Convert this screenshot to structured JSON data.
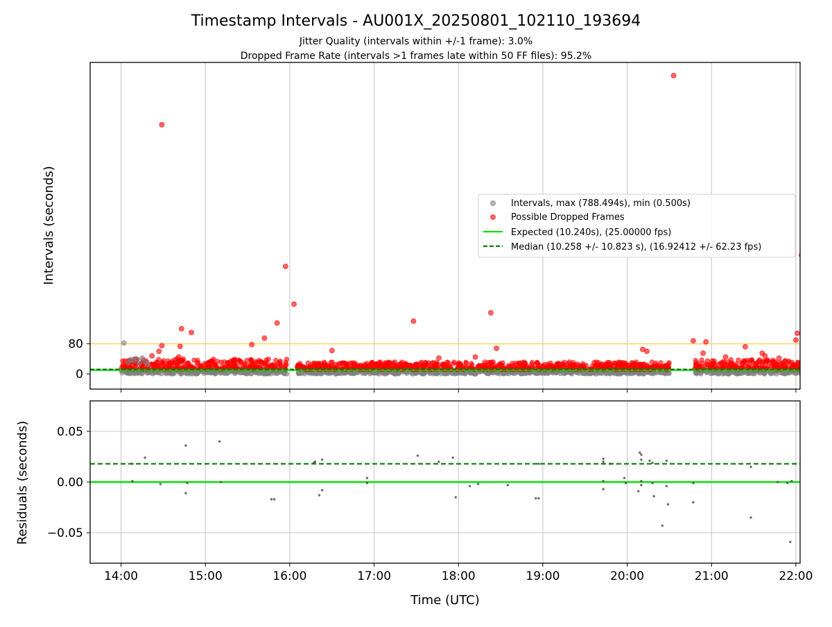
{
  "figure": {
    "title": "Timestamp Intervals - AU001X_20250801_102110_193694",
    "subtitle_line1": "Jitter Quality (intervals within +/-1 frame): 3.0%",
    "subtitle_line2": "Dropped Frame Rate (intervals >1 frames late within 50 FF files): 95.2%"
  },
  "colors": {
    "intervals": "#808080",
    "dropped": "#ff0000",
    "expected": "#00e000",
    "median": "#007f00",
    "threshold": "#ffd24d",
    "grid": "#c8c8c8",
    "residuals": "#505050"
  },
  "chart_data": [
    {
      "type": "scatter",
      "name": "intervals",
      "ylabel": "Intervals (seconds)",
      "xlim": [
        "13:38",
        "22:03"
      ],
      "ylim": [
        -40,
        825
      ],
      "yticks": [
        0,
        80
      ],
      "ytick_labels": [
        "0",
        "80"
      ],
      "grid": "x",
      "legend_position": "center-right",
      "threshold_line": 80,
      "legend": [
        {
          "label": "Intervals, max (788.494s), min (0.500s)",
          "kind": "gray-dot"
        },
        {
          "label": "Possible Dropped Frames",
          "kind": "red-dot"
        },
        {
          "label": "Expected (10.240s), (25.00000 fps)",
          "kind": "solid-line"
        },
        {
          "label": "Median (10.258 +/- 10.823 s), (16.92412 +/- 62.23 fps)",
          "kind": "dashed-line"
        }
      ],
      "expected": 10.24,
      "median": 10.258,
      "dense_segments": [
        {
          "start": "14:00",
          "end": "15:58",
          "gray_low": 0,
          "gray_high": 12,
          "red_low": 13,
          "red_high": 40
        },
        {
          "start": "16:05",
          "end": "20:30",
          "gray_low": 0,
          "gray_high": 10,
          "red_low": 12,
          "red_high": 32
        },
        {
          "start": "20:48",
          "end": "22:03",
          "gray_low": 0,
          "gray_high": 12,
          "red_low": 13,
          "red_high": 38
        }
      ],
      "gray_outliers": [
        {
          "x": "14:02",
          "y": 82
        },
        {
          "x": "14:05",
          "y": 30
        },
        {
          "x": "14:07",
          "y": 38
        },
        {
          "x": "14:09",
          "y": 35
        },
        {
          "x": "14:11",
          "y": 40
        },
        {
          "x": "14:13",
          "y": 28
        },
        {
          "x": "14:15",
          "y": 42
        },
        {
          "x": "14:17",
          "y": 33
        },
        {
          "x": "14:19",
          "y": 25
        }
      ],
      "red_outliers": [
        {
          "x": "14:29",
          "y": 660
        },
        {
          "x": "14:29",
          "y": 75
        },
        {
          "x": "14:27",
          "y": 60
        },
        {
          "x": "14:22",
          "y": 48
        },
        {
          "x": "14:42",
          "y": 73
        },
        {
          "x": "14:43",
          "y": 120
        },
        {
          "x": "14:50",
          "y": 110
        },
        {
          "x": "14:41",
          "y": 45
        },
        {
          "x": "15:33",
          "y": 78
        },
        {
          "x": "15:42",
          "y": 95
        },
        {
          "x": "15:51",
          "y": 135
        },
        {
          "x": "15:57",
          "y": 285
        },
        {
          "x": "16:03",
          "y": 185
        },
        {
          "x": "16:30",
          "y": 62
        },
        {
          "x": "17:28",
          "y": 140
        },
        {
          "x": "17:46",
          "y": 42
        },
        {
          "x": "18:23",
          "y": 162
        },
        {
          "x": "18:27",
          "y": 68
        },
        {
          "x": "18:12",
          "y": 45
        },
        {
          "x": "20:33",
          "y": 790
        },
        {
          "x": "20:11",
          "y": 65
        },
        {
          "x": "20:14",
          "y": 60
        },
        {
          "x": "20:47",
          "y": 88
        },
        {
          "x": "20:54",
          "y": 55
        },
        {
          "x": "20:56",
          "y": 85
        },
        {
          "x": "21:24",
          "y": 72
        },
        {
          "x": "21:36",
          "y": 55
        },
        {
          "x": "21:38",
          "y": 48
        },
        {
          "x": "22:01",
          "y": 108
        },
        {
          "x": "22:00",
          "y": 90
        },
        {
          "x": "22:04",
          "y": 315
        },
        {
          "x": "21:48",
          "y": 42
        },
        {
          "x": "21:10",
          "y": 45
        }
      ]
    },
    {
      "type": "scatter",
      "name": "residuals",
      "ylabel": "Residuals (seconds)",
      "xlabel": "Time (UTC)",
      "xlim": [
        "13:38",
        "22:03"
      ],
      "ylim": [
        -0.08,
        0.08
      ],
      "yticks": [
        0.05,
        0.0,
        -0.05
      ],
      "ytick_labels": [
        "0.05",
        "0.00",
        "−0.05"
      ],
      "xticks": [
        "14:00",
        "15:00",
        "16:00",
        "17:00",
        "18:00",
        "19:00",
        "20:00",
        "21:00",
        "22:00"
      ],
      "grid": "both",
      "expected": 0.0,
      "median": 0.018,
      "points": [
        {
          "x": "14:08",
          "y": 0.018
        },
        {
          "x": "14:08",
          "y": 0.001
        },
        {
          "x": "14:17",
          "y": 0.024
        },
        {
          "x": "14:28",
          "y": -0.002
        },
        {
          "x": "14:46",
          "y": 0.036
        },
        {
          "x": "14:46",
          "y": -0.011
        },
        {
          "x": "14:47",
          "y": -0.001
        },
        {
          "x": "15:10",
          "y": 0.04
        },
        {
          "x": "15:11",
          "y": 0.0
        },
        {
          "x": "15:47",
          "y": -0.017
        },
        {
          "x": "15:49",
          "y": -0.017
        },
        {
          "x": "16:17",
          "y": 0.019
        },
        {
          "x": "16:18",
          "y": 0.02
        },
        {
          "x": "16:21",
          "y": -0.013
        },
        {
          "x": "16:23",
          "y": 0.022
        },
        {
          "x": "16:23",
          "y": -0.008
        },
        {
          "x": "16:55",
          "y": 0.004
        },
        {
          "x": "16:55",
          "y": -0.001
        },
        {
          "x": "17:31",
          "y": 0.026
        },
        {
          "x": "17:46",
          "y": 0.02
        },
        {
          "x": "17:56",
          "y": 0.024
        },
        {
          "x": "17:58",
          "y": -0.015
        },
        {
          "x": "18:08",
          "y": -0.004
        },
        {
          "x": "18:14",
          "y": -0.002
        },
        {
          "x": "18:35",
          "y": -0.003
        },
        {
          "x": "18:55",
          "y": -0.016
        },
        {
          "x": "18:57",
          "y": -0.016
        },
        {
          "x": "18:57",
          "y": 0.018
        },
        {
          "x": "19:43",
          "y": 0.023
        },
        {
          "x": "19:43",
          "y": 0.02
        },
        {
          "x": "19:43",
          "y": 0.001
        },
        {
          "x": "19:43",
          "y": -0.007
        },
        {
          "x": "19:48",
          "y": 0.018
        },
        {
          "x": "19:58",
          "y": 0.004
        },
        {
          "x": "19:59",
          "y": -0.001
        },
        {
          "x": "20:08",
          "y": -0.009
        },
        {
          "x": "20:09",
          "y": 0.029
        },
        {
          "x": "20:10",
          "y": 0.027
        },
        {
          "x": "20:10",
          "y": 0.022
        },
        {
          "x": "20:10",
          "y": 0.001
        },
        {
          "x": "20:10",
          "y": -0.003
        },
        {
          "x": "20:16",
          "y": 0.021
        },
        {
          "x": "20:18",
          "y": 0.019
        },
        {
          "x": "20:18",
          "y": -0.001
        },
        {
          "x": "20:19",
          "y": -0.014
        },
        {
          "x": "20:25",
          "y": -0.043
        },
        {
          "x": "20:28",
          "y": 0.021
        },
        {
          "x": "20:28",
          "y": -0.004
        },
        {
          "x": "20:29",
          "y": -0.022
        },
        {
          "x": "20:47",
          "y": -0.001
        },
        {
          "x": "20:47",
          "y": -0.02
        },
        {
          "x": "21:28",
          "y": 0.015
        },
        {
          "x": "21:28",
          "y": -0.035
        },
        {
          "x": "21:47",
          "y": 0.0
        },
        {
          "x": "21:54",
          "y": -0.001
        },
        {
          "x": "21:56",
          "y": -0.059
        },
        {
          "x": "21:57",
          "y": 0.001
        }
      ]
    }
  ]
}
